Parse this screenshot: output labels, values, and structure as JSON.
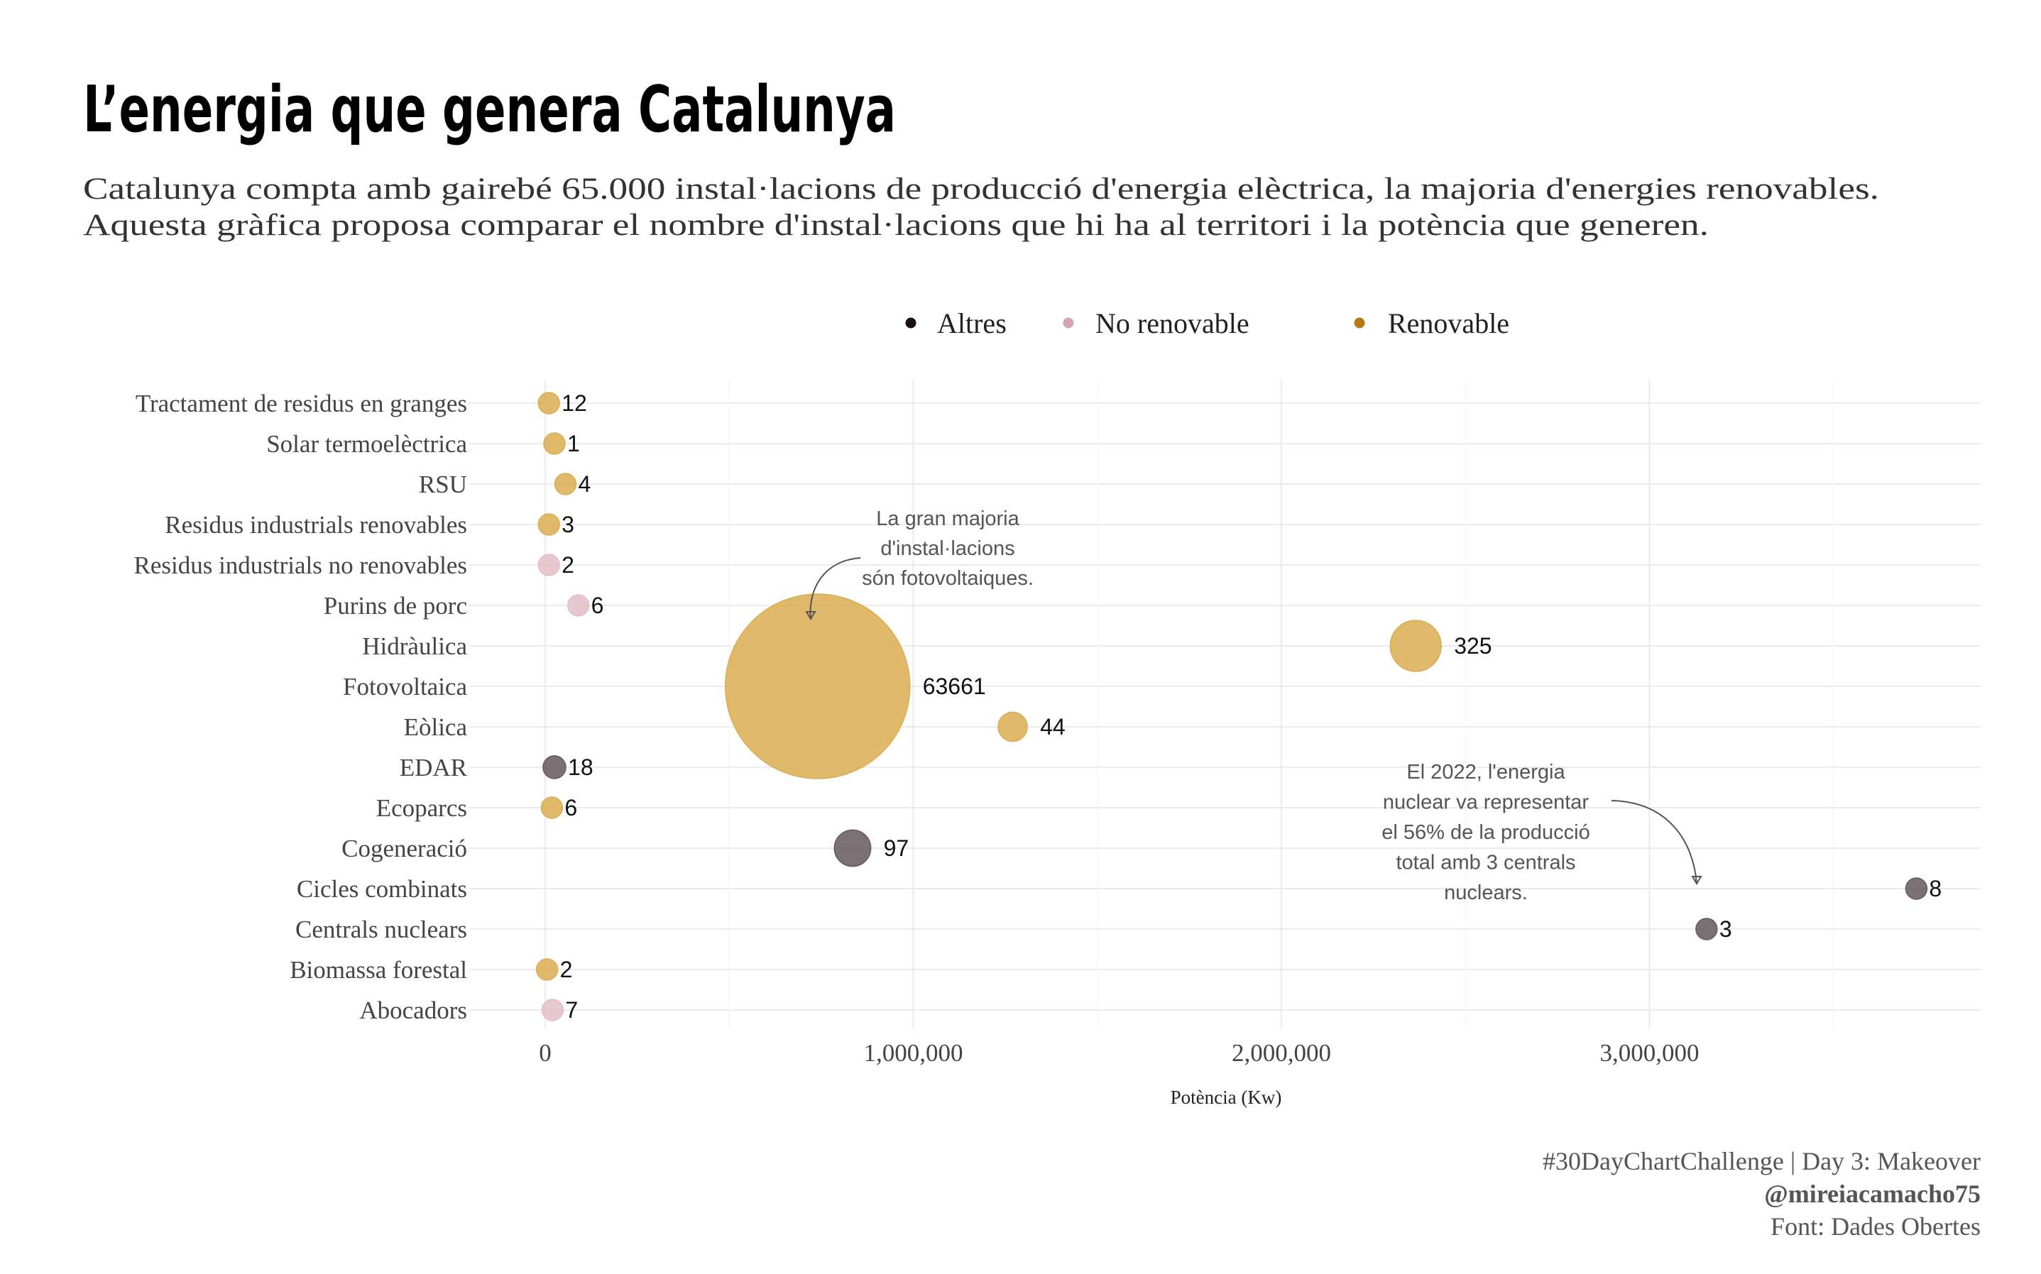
{
  "title": "L’energia que genera Catalunya",
  "subtitle_lines": [
    "Catalunya compta amb gairebé 65.000 instal·lacions de producció d'energia elèctrica, la majoria d'energies renovables.",
    "Aquesta gràfica proposa comparar el nombre d'instal·lacions que hi ha al territori i la potència que generen."
  ],
  "legend": [
    {
      "name": "Altres",
      "color": "#1a1012"
    },
    {
      "name": "No renovable",
      "color": "#d4a5b0"
    },
    {
      "name": "Renovable",
      "color": "#b87a16"
    }
  ],
  "colors": {
    "Altres": "#5e5257",
    "No renovable": "#e2bcc5",
    "Renovable": "#d9a94a",
    "grid": "#e6e6e6",
    "text": "#444444"
  },
  "chart_data": {
    "type": "scatter",
    "xlabel": "Potència (Kw)",
    "ylabel": "",
    "xlim": [
      -200000,
      3900000
    ],
    "xticks": [
      0,
      1000000,
      2000000,
      3000000
    ],
    "xtick_labels": [
      "0",
      "1,000,000",
      "2,000,000",
      "3,000,000"
    ],
    "grid": true,
    "legend_position": "top",
    "size_encoding": "number of installations",
    "categories": [
      "Tractament de residus en granges",
      "Solar termoelèctrica",
      "RSU",
      "Residus industrials renovables",
      "Residus industrials no renovables",
      "Purins de porc",
      "Hidràulica",
      "Fotovoltaica",
      "Eòlica",
      "EDAR",
      "Ecoparcs",
      "Cogeneració",
      "Cicles combinats",
      "Centrals nuclears",
      "Biomassa forestal",
      "Abocadors"
    ],
    "points": [
      {
        "category": "Tractament de residus en granges",
        "x": 10000,
        "count": 12,
        "group": "Renovable"
      },
      {
        "category": "Solar termoelèctrica",
        "x": 25000,
        "count": 1,
        "group": "Renovable"
      },
      {
        "category": "RSU",
        "x": 55000,
        "count": 4,
        "group": "Renovable"
      },
      {
        "category": "Residus industrials renovables",
        "x": 10000,
        "count": 3,
        "group": "Renovable"
      },
      {
        "category": "Residus industrials no renovables",
        "x": 10000,
        "count": 2,
        "group": "No renovable"
      },
      {
        "category": "Purins de porc",
        "x": 90000,
        "count": 6,
        "group": "No renovable"
      },
      {
        "category": "Hidràulica",
        "x": 2365000,
        "count": 325,
        "group": "Renovable"
      },
      {
        "category": "Fotovoltaica",
        "x": 740000,
        "count": 63661,
        "group": "Renovable"
      },
      {
        "category": "Eòlica",
        "x": 1270000,
        "count": 44,
        "group": "Renovable"
      },
      {
        "category": "EDAR",
        "x": 25000,
        "count": 18,
        "group": "Altres"
      },
      {
        "category": "Ecoparcs",
        "x": 18000,
        "count": 6,
        "group": "Renovable"
      },
      {
        "category": "Cogeneració",
        "x": 835000,
        "count": 97,
        "group": "Altres"
      },
      {
        "category": "Cicles combinats",
        "x": 3725000,
        "count": 8,
        "group": "Altres"
      },
      {
        "category": "Centrals nuclears",
        "x": 3155000,
        "count": 3,
        "group": "Altres"
      },
      {
        "category": "Biomassa forestal",
        "x": 5000,
        "count": 2,
        "group": "Renovable"
      },
      {
        "category": "Abocadors",
        "x": 20000,
        "count": 7,
        "group": "No renovable"
      }
    ],
    "annotations": [
      {
        "lines": [
          "La gran majoria",
          "d'instal·lacions",
          "són fotovoltaiques."
        ],
        "points_to": "Fotovoltaica"
      },
      {
        "lines": [
          "El 2022, l'energia",
          "nuclear va representar",
          "el 56% de la producció",
          "total amb 3 centrals",
          "nuclears."
        ],
        "points_to": "Centrals nuclears"
      }
    ]
  },
  "caption_lines": [
    "#30DayChartChallenge | Day 3: Makeover",
    "@mireiacamacho75",
    "Font: Dades Obertes"
  ]
}
